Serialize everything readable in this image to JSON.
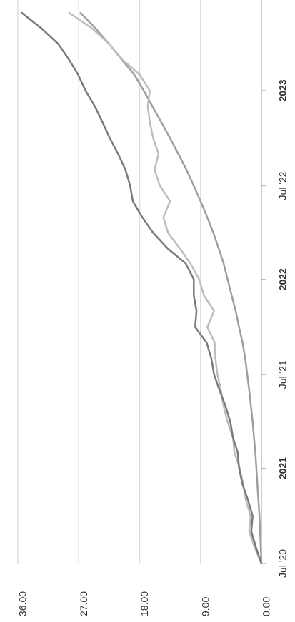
{
  "chart_data": {
    "type": "line",
    "x": [
      "2020-07",
      "2020-08",
      "2020-09",
      "2020-10",
      "2020-11",
      "2020-12",
      "2021-01",
      "2021-02",
      "2021-03",
      "2021-04",
      "2021-05",
      "2021-06",
      "2021-07",
      "2021-08",
      "2021-09",
      "2021-10",
      "2021-11",
      "2021-12",
      "2022-01",
      "2022-02",
      "2022-03",
      "2022-04",
      "2022-05",
      "2022-06",
      "2022-07",
      "2022-08",
      "2022-09",
      "2022-10",
      "2022-11",
      "2022-12",
      "2023-01",
      "2023-02",
      "2023-03",
      "2023-04",
      "2023-05",
      "2023-06"
    ],
    "series": [
      {
        "color": "#7a7a7a",
        "values": [
          0,
          0.8,
          1.5,
          1.3,
          2.0,
          2.8,
          3.3,
          3.5,
          4.2,
          4.6,
          5.3,
          6.2,
          7.0,
          7.4,
          8.1,
          9.8,
          9.6,
          10.0,
          10.0,
          11.2,
          13.8,
          16.0,
          17.6,
          19.0,
          19.4,
          20.1,
          21.2,
          22.4,
          23.5,
          24.6,
          26.0,
          27.1,
          28.4,
          30.0,
          32.5,
          35.5
        ]
      },
      {
        "color": "#bdbdbd",
        "values": [
          0,
          1.0,
          1.8,
          1.6,
          2.3,
          2.7,
          3.2,
          4.0,
          4.2,
          5.0,
          5.6,
          6.0,
          6.5,
          6.8,
          6.9,
          8.0,
          7.0,
          8.5,
          9.2,
          10.5,
          12.0,
          13.8,
          14.5,
          13.5,
          15.0,
          15.8,
          15.2,
          16.0,
          16.5,
          16.8,
          16.5,
          18.0,
          20.5,
          22.5,
          25.0,
          28.5
        ]
      },
      {
        "color": "#9e9e9e",
        "values": [
          0,
          0.1,
          0.2,
          0.3,
          0.45,
          0.6,
          0.75,
          0.9,
          1.1,
          1.3,
          1.55,
          1.8,
          2.1,
          2.4,
          2.8,
          3.3,
          3.8,
          4.4,
          5.0,
          5.6,
          6.3,
          7.1,
          8.0,
          9.0,
          10.0,
          11.1,
          12.3,
          13.5,
          14.8,
          16.1,
          17.4,
          18.8,
          20.6,
          22.5,
          24.5,
          26.8
        ]
      }
    ],
    "xlim": [
      "2020-07-01",
      "2023-06-25"
    ],
    "xticks": [
      {
        "value": "2020-07-01",
        "label": "Jul '20",
        "bold": false
      },
      {
        "value": "2021-01-01",
        "label": "2021",
        "bold": true
      },
      {
        "value": "2021-07-01",
        "label": "Jul '21",
        "bold": false
      },
      {
        "value": "2022-01-01",
        "label": "2022",
        "bold": true
      },
      {
        "value": "2022-07-01",
        "label": "Jul '22",
        "bold": false
      },
      {
        "value": "2023-01-01",
        "label": "2023",
        "bold": true
      }
    ],
    "ylim": [
      0,
      36
    ],
    "yticks": [
      {
        "value": 0,
        "label": "0.00"
      },
      {
        "value": 9,
        "label": "9.00"
      },
      {
        "value": 18,
        "label": "18.00"
      },
      {
        "value": 27,
        "label": "27.00"
      },
      {
        "value": 36,
        "label": "36.00"
      }
    ],
    "grid": true
  }
}
